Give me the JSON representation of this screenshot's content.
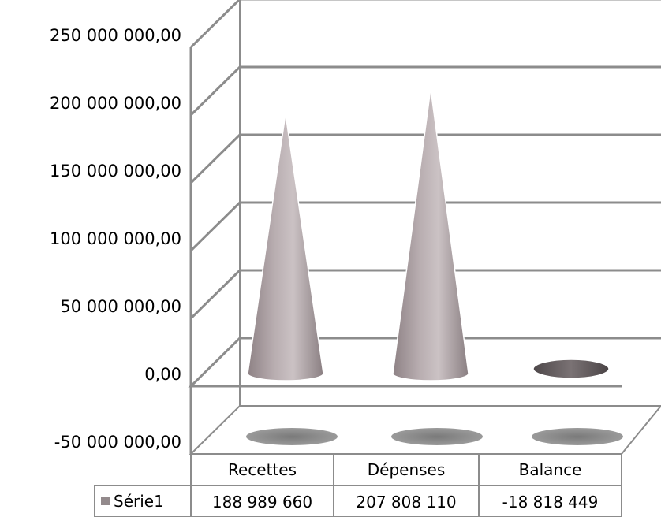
{
  "chart_data": {
    "type": "table",
    "chart_subtype": "3d-cone",
    "categories": [
      "Recettes",
      "Dépenses",
      "Balance"
    ],
    "series": [
      {
        "name": "Série1",
        "values": [
          188989660,
          207808110,
          -18818449
        ]
      }
    ],
    "value_labels": [
      "188 989 660",
      "207 808 110",
      "-18 818 449"
    ],
    "ylim": [
      -50000000,
      250000000
    ],
    "yticks": [
      {
        "value": -50000000,
        "label": "-50 000 000,00"
      },
      {
        "value": 0,
        "label": "0,00"
      },
      {
        "value": 50000000,
        "label": "50 000 000,00"
      },
      {
        "value": 100000000,
        "label": "100 000 000,00"
      },
      {
        "value": 150000000,
        "label": "150 000 000,00"
      },
      {
        "value": 200000000,
        "label": "200 000 000,00"
      },
      {
        "value": 250000000,
        "label": "250 000 000,00"
      }
    ],
    "grid": true,
    "legend": "data-table",
    "colors": {
      "cone": "#a89c9f",
      "cone_dark": "#6b6466",
      "shadow": "#8a8a8a",
      "grid": "#8c8c8c",
      "legend_key": "#938a8c"
    }
  }
}
